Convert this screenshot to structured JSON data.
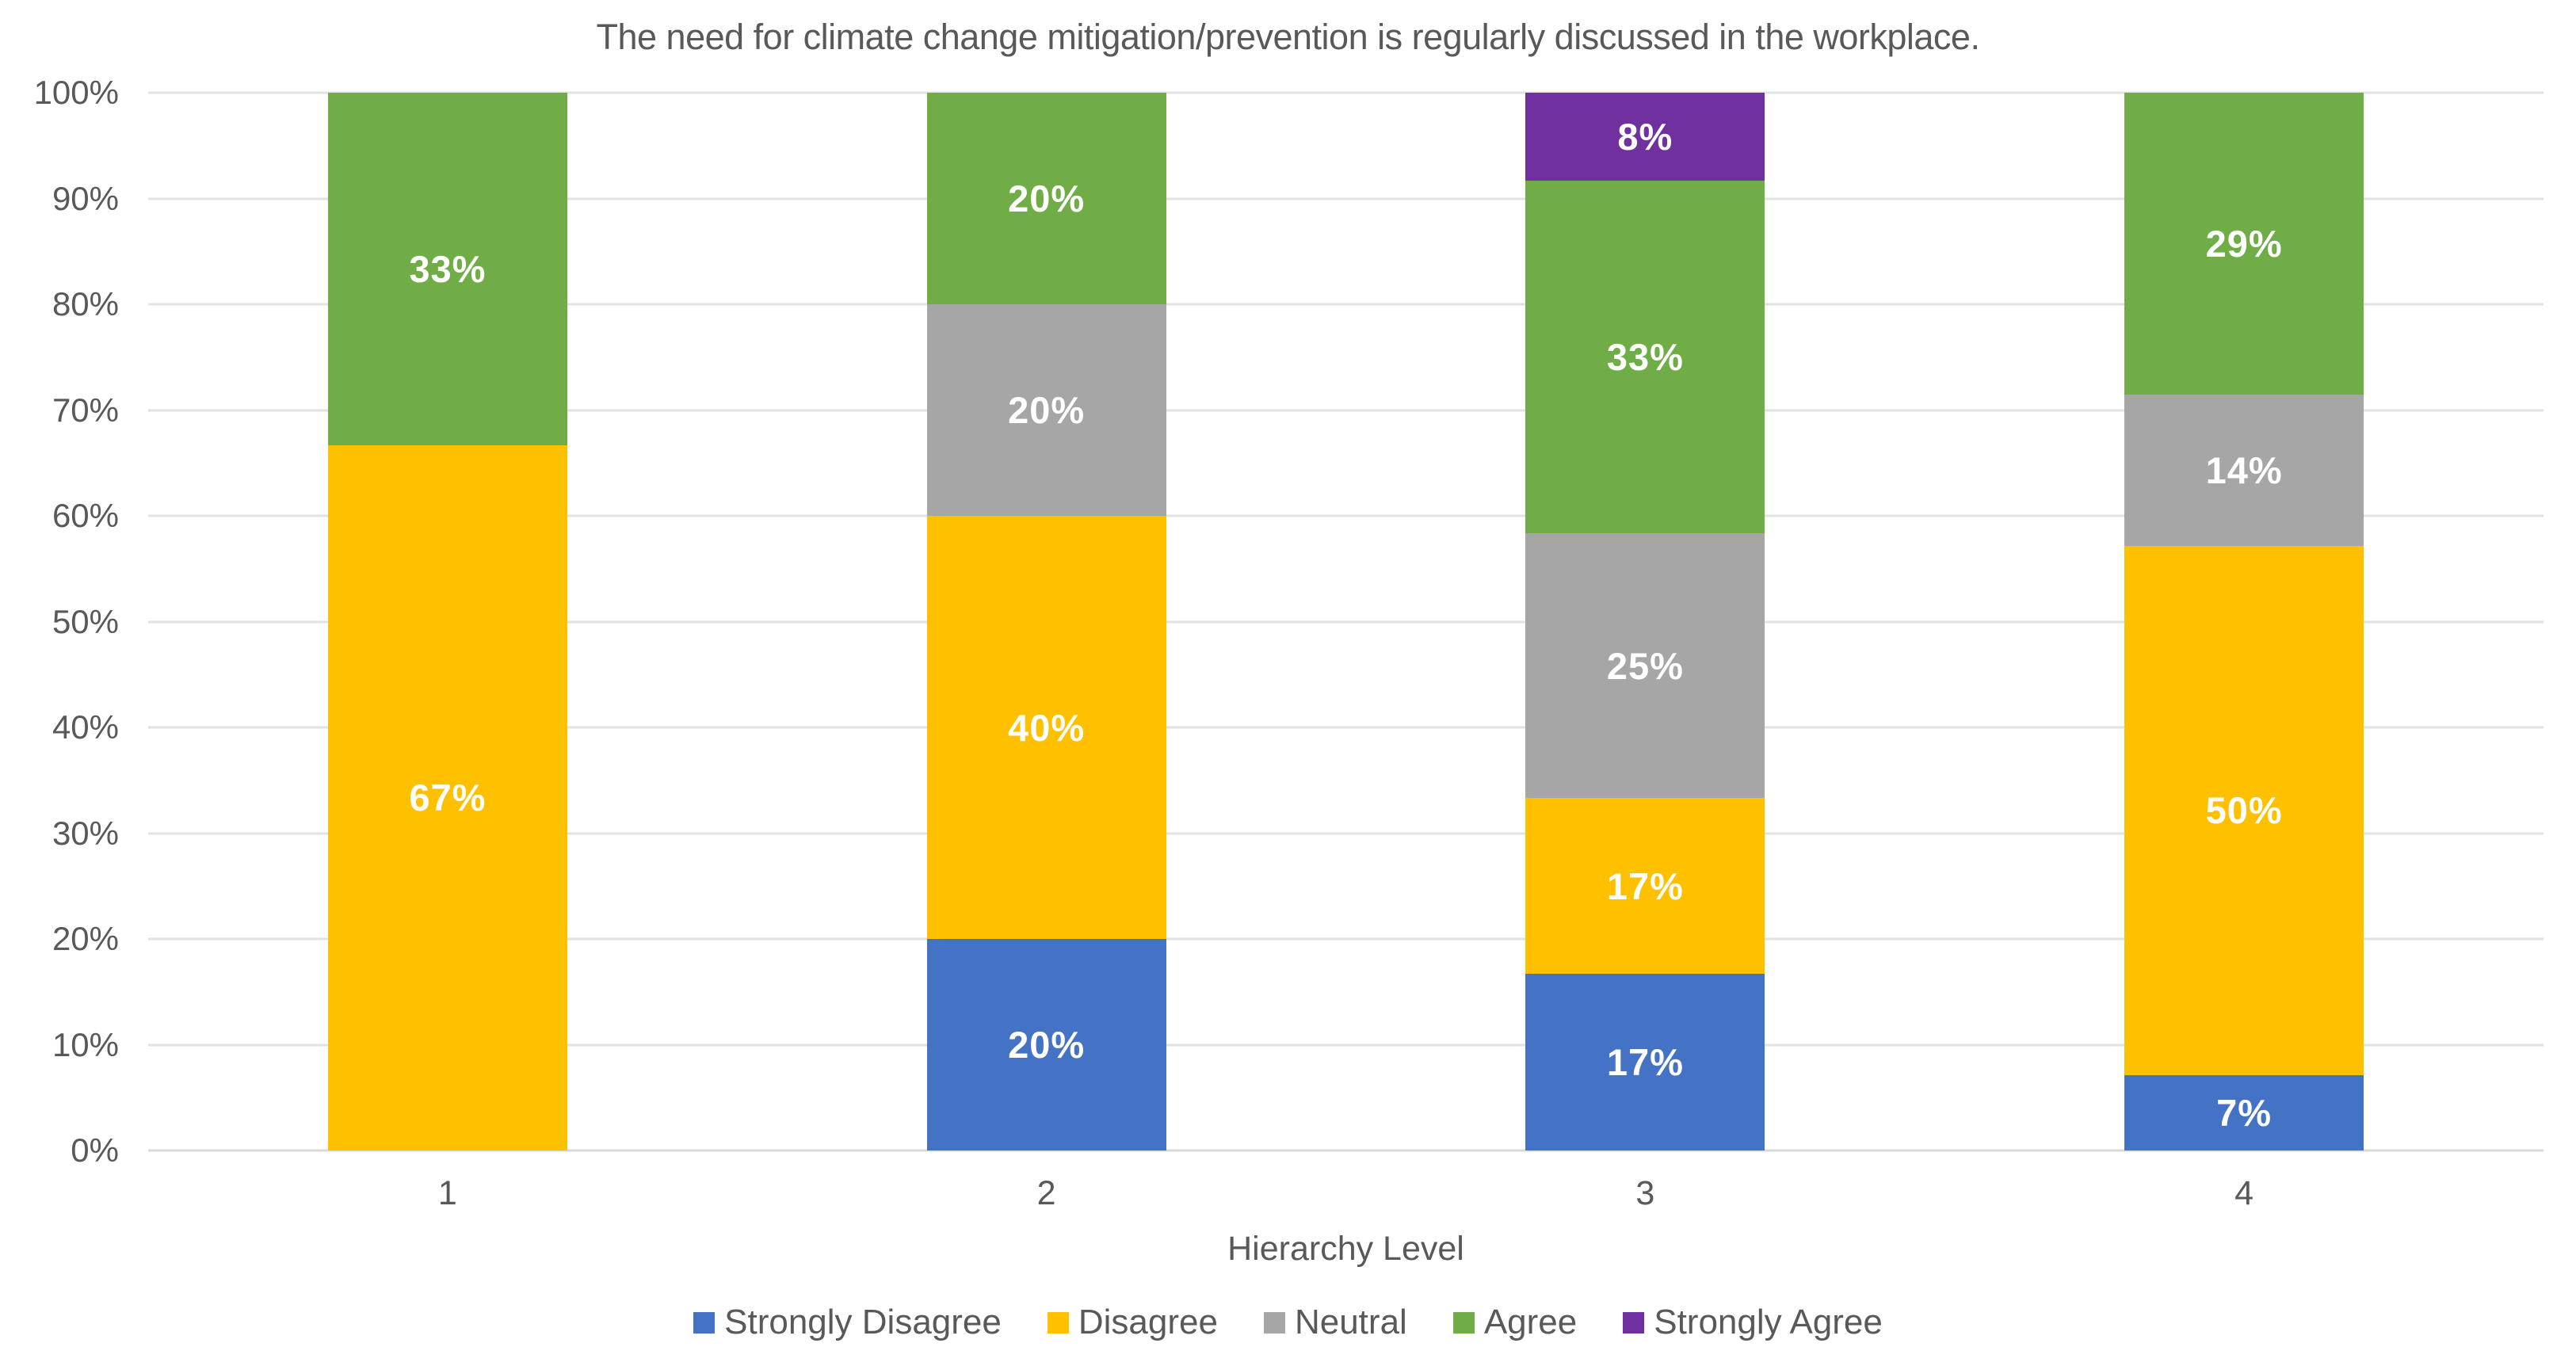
{
  "chart_data": {
    "type": "bar",
    "subtype": "stacked-100",
    "title": "The need for climate change mitigation/prevention is regularly discussed in the workplace.",
    "xlabel": "Hierarchy Level",
    "ylabel": "",
    "categories": [
      "1",
      "2",
      "3",
      "4"
    ],
    "y_ticks": [
      {
        "label": "100%",
        "value": 100
      },
      {
        "label": "90%",
        "value": 90
      },
      {
        "label": "80%",
        "value": 80
      },
      {
        "label": "70%",
        "value": 70
      },
      {
        "label": "60%",
        "value": 60
      },
      {
        "label": "50%",
        "value": 50
      },
      {
        "label": "40%",
        "value": 40
      },
      {
        "label": "30%",
        "value": 30
      },
      {
        "label": "20%",
        "value": 20
      },
      {
        "label": "10%",
        "value": 10
      },
      {
        "label": "0%",
        "value": 0
      }
    ],
    "ylim": [
      0,
      100
    ],
    "grid": true,
    "legend_position": "bottom",
    "series": [
      {
        "name": "Strongly Disagree",
        "color": "#4472C4",
        "values": [
          0,
          20,
          16.67,
          7.14
        ],
        "labels": [
          "",
          "20%",
          "17%",
          "7%"
        ]
      },
      {
        "name": "Disagree",
        "color": "#FFC000",
        "values": [
          66.67,
          40,
          16.66,
          50
        ],
        "labels": [
          "67%",
          "40%",
          "17%",
          "50%"
        ]
      },
      {
        "name": "Neutral",
        "color": "#A6A6A6",
        "values": [
          0,
          20,
          25,
          14.29
        ],
        "labels": [
          "",
          "20%",
          "25%",
          "14%"
        ]
      },
      {
        "name": "Agree",
        "color": "#70AD47",
        "values": [
          33.33,
          20,
          33.34,
          28.57
        ],
        "labels": [
          "33%",
          "20%",
          "33%",
          "29%"
        ]
      },
      {
        "name": "Strongly Agree",
        "color": "#7030A0",
        "values": [
          0,
          0,
          8.33,
          0
        ],
        "labels": [
          "",
          "",
          "8%",
          ""
        ]
      }
    ],
    "colors": {
      "grid": "#E2E2E2",
      "axis_text": "#595959",
      "title_text": "#595959",
      "data_label_text": "#FFFFFF"
    }
  }
}
